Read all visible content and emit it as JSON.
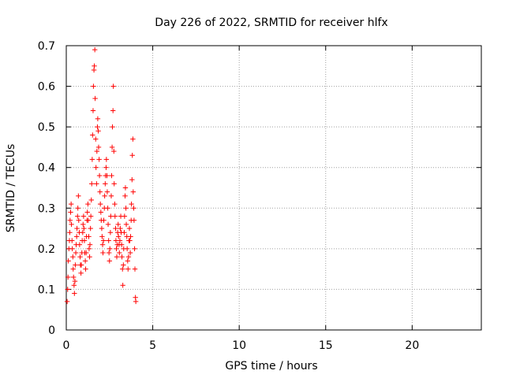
{
  "chart_data": {
    "type": "scatter",
    "title": "Day 226 of 2022, SRMTID for receiver hlfx",
    "xlabel": "GPS time / hours",
    "ylabel": "SRMTID / TECUs",
    "xlim": [
      0,
      24
    ],
    "ylim": [
      0,
      0.7
    ],
    "xticks": [
      0,
      5,
      10,
      15,
      20
    ],
    "yticks": [
      0,
      0.1,
      0.2,
      0.3,
      0.4,
      0.5,
      0.6,
      0.7
    ],
    "xtick_labels": [
      "0",
      "5",
      "10",
      "15",
      "20"
    ],
    "ytick_labels": [
      "0",
      "0.1",
      "0.2",
      "0.3",
      "0.4",
      "0.5",
      "0.6",
      "0.7"
    ],
    "grid": true,
    "marker": "+",
    "color": "#ff0000",
    "series": [
      {
        "name": "SRMTID",
        "points": [
          [
            0.05,
            0.07
          ],
          [
            0.08,
            0.1
          ],
          [
            0.1,
            0.13
          ],
          [
            0.12,
            0.17
          ],
          [
            0.15,
            0.2
          ],
          [
            0.18,
            0.22
          ],
          [
            0.2,
            0.24
          ],
          [
            0.22,
            0.27
          ],
          [
            0.25,
            0.29
          ],
          [
            0.28,
            0.31
          ],
          [
            0.3,
            0.26
          ],
          [
            0.33,
            0.22
          ],
          [
            0.35,
            0.2
          ],
          [
            0.38,
            0.18
          ],
          [
            0.4,
            0.15
          ],
          [
            0.42,
            0.13
          ],
          [
            0.45,
            0.11
          ],
          [
            0.47,
            0.09
          ],
          [
            0.5,
            0.12
          ],
          [
            0.52,
            0.16
          ],
          [
            0.55,
            0.19
          ],
          [
            0.57,
            0.21
          ],
          [
            0.6,
            0.23
          ],
          [
            0.62,
            0.25
          ],
          [
            0.65,
            0.28
          ],
          [
            0.67,
            0.3
          ],
          [
            0.7,
            0.33
          ],
          [
            0.72,
            0.27
          ],
          [
            0.75,
            0.24
          ],
          [
            0.77,
            0.21
          ],
          [
            0.8,
            0.18
          ],
          [
            0.82,
            0.16
          ],
          [
            0.85,
            0.14
          ],
          [
            0.87,
            0.16
          ],
          [
            0.9,
            0.19
          ],
          [
            0.92,
            0.22
          ],
          [
            0.95,
            0.24
          ],
          [
            0.97,
            0.26
          ],
          [
            1.0,
            0.28
          ],
          [
            1.02,
            0.25
          ],
          [
            1.05,
            0.22
          ],
          [
            1.07,
            0.19
          ],
          [
            1.1,
            0.17
          ],
          [
            1.12,
            0.15
          ],
          [
            1.15,
            0.19
          ],
          [
            1.17,
            0.23
          ],
          [
            1.2,
            0.27
          ],
          [
            1.22,
            0.29
          ],
          [
            1.25,
            0.31
          ],
          [
            1.27,
            0.27
          ],
          [
            1.3,
            0.23
          ],
          [
            1.32,
            0.2
          ],
          [
            1.35,
            0.18
          ],
          [
            1.37,
            0.21
          ],
          [
            1.4,
            0.25
          ],
          [
            1.42,
            0.28
          ],
          [
            1.45,
            0.32
          ],
          [
            1.47,
            0.36
          ],
          [
            1.5,
            0.42
          ],
          [
            1.52,
            0.48
          ],
          [
            1.55,
            0.54
          ],
          [
            1.57,
            0.6
          ],
          [
            1.6,
            0.64
          ],
          [
            1.62,
            0.65
          ],
          [
            1.65,
            0.69
          ],
          [
            1.67,
            0.57
          ],
          [
            1.7,
            0.47
          ],
          [
            1.72,
            0.4
          ],
          [
            1.75,
            0.36
          ],
          [
            1.77,
            0.44
          ],
          [
            1.8,
            0.5
          ],
          [
            1.82,
            0.52
          ],
          [
            1.85,
            0.49
          ],
          [
            1.87,
            0.45
          ],
          [
            1.9,
            0.42
          ],
          [
            1.92,
            0.38
          ],
          [
            1.95,
            0.34
          ],
          [
            1.97,
            0.31
          ],
          [
            2.0,
            0.29
          ],
          [
            2.02,
            0.27
          ],
          [
            2.05,
            0.25
          ],
          [
            2.07,
            0.23
          ],
          [
            2.1,
            0.21
          ],
          [
            2.12,
            0.19
          ],
          [
            2.15,
            0.22
          ],
          [
            2.17,
            0.27
          ],
          [
            2.2,
            0.3
          ],
          [
            2.22,
            0.33
          ],
          [
            2.25,
            0.36
          ],
          [
            2.27,
            0.38
          ],
          [
            2.3,
            0.4
          ],
          [
            2.32,
            0.42
          ],
          [
            2.35,
            0.38
          ],
          [
            2.37,
            0.34
          ],
          [
            2.4,
            0.3
          ],
          [
            2.42,
            0.26
          ],
          [
            2.45,
            0.22
          ],
          [
            2.47,
            0.19
          ],
          [
            2.5,
            0.17
          ],
          [
            2.52,
            0.2
          ],
          [
            2.55,
            0.24
          ],
          [
            2.57,
            0.28
          ],
          [
            2.6,
            0.33
          ],
          [
            2.62,
            0.38
          ],
          [
            2.65,
            0.45
          ],
          [
            2.67,
            0.5
          ],
          [
            2.7,
            0.54
          ],
          [
            2.72,
            0.6
          ],
          [
            2.75,
            0.44
          ],
          [
            2.77,
            0.36
          ],
          [
            2.8,
            0.31
          ],
          [
            2.82,
            0.28
          ],
          [
            2.85,
            0.25
          ],
          [
            2.87,
            0.22
          ],
          [
            2.9,
            0.2
          ],
          [
            2.92,
            0.18
          ],
          [
            2.95,
            0.21
          ],
          [
            2.97,
            0.24
          ],
          [
            3.0,
            0.26
          ],
          [
            3.02,
            0.23
          ],
          [
            3.05,
            0.21
          ],
          [
            3.07,
            0.19
          ],
          [
            3.1,
            0.22
          ],
          [
            3.12,
            0.25
          ],
          [
            3.15,
            0.28
          ],
          [
            3.17,
            0.24
          ],
          [
            3.2,
            0.21
          ],
          [
            3.22,
            0.18
          ],
          [
            3.25,
            0.15
          ],
          [
            3.27,
            0.11
          ],
          [
            3.3,
            0.16
          ],
          [
            3.32,
            0.2
          ],
          [
            3.35,
            0.24
          ],
          [
            3.37,
            0.28
          ],
          [
            3.4,
            0.33
          ],
          [
            3.42,
            0.35
          ],
          [
            3.45,
            0.3
          ],
          [
            3.47,
            0.26
          ],
          [
            3.5,
            0.23
          ],
          [
            3.52,
            0.2
          ],
          [
            3.55,
            0.17
          ],
          [
            3.57,
            0.15
          ],
          [
            3.6,
            0.18
          ],
          [
            3.62,
            0.22
          ],
          [
            3.65,
            0.25
          ],
          [
            3.67,
            0.22
          ],
          [
            3.7,
            0.19
          ],
          [
            3.72,
            0.23
          ],
          [
            3.75,
            0.27
          ],
          [
            3.77,
            0.31
          ],
          [
            3.8,
            0.37
          ],
          [
            3.82,
            0.43
          ],
          [
            3.85,
            0.47
          ],
          [
            3.87,
            0.34
          ],
          [
            3.9,
            0.3
          ],
          [
            3.92,
            0.27
          ],
          [
            3.95,
            0.2
          ],
          [
            3.97,
            0.15
          ],
          [
            4.0,
            0.08
          ],
          [
            4.02,
            0.07
          ]
        ]
      }
    ]
  }
}
